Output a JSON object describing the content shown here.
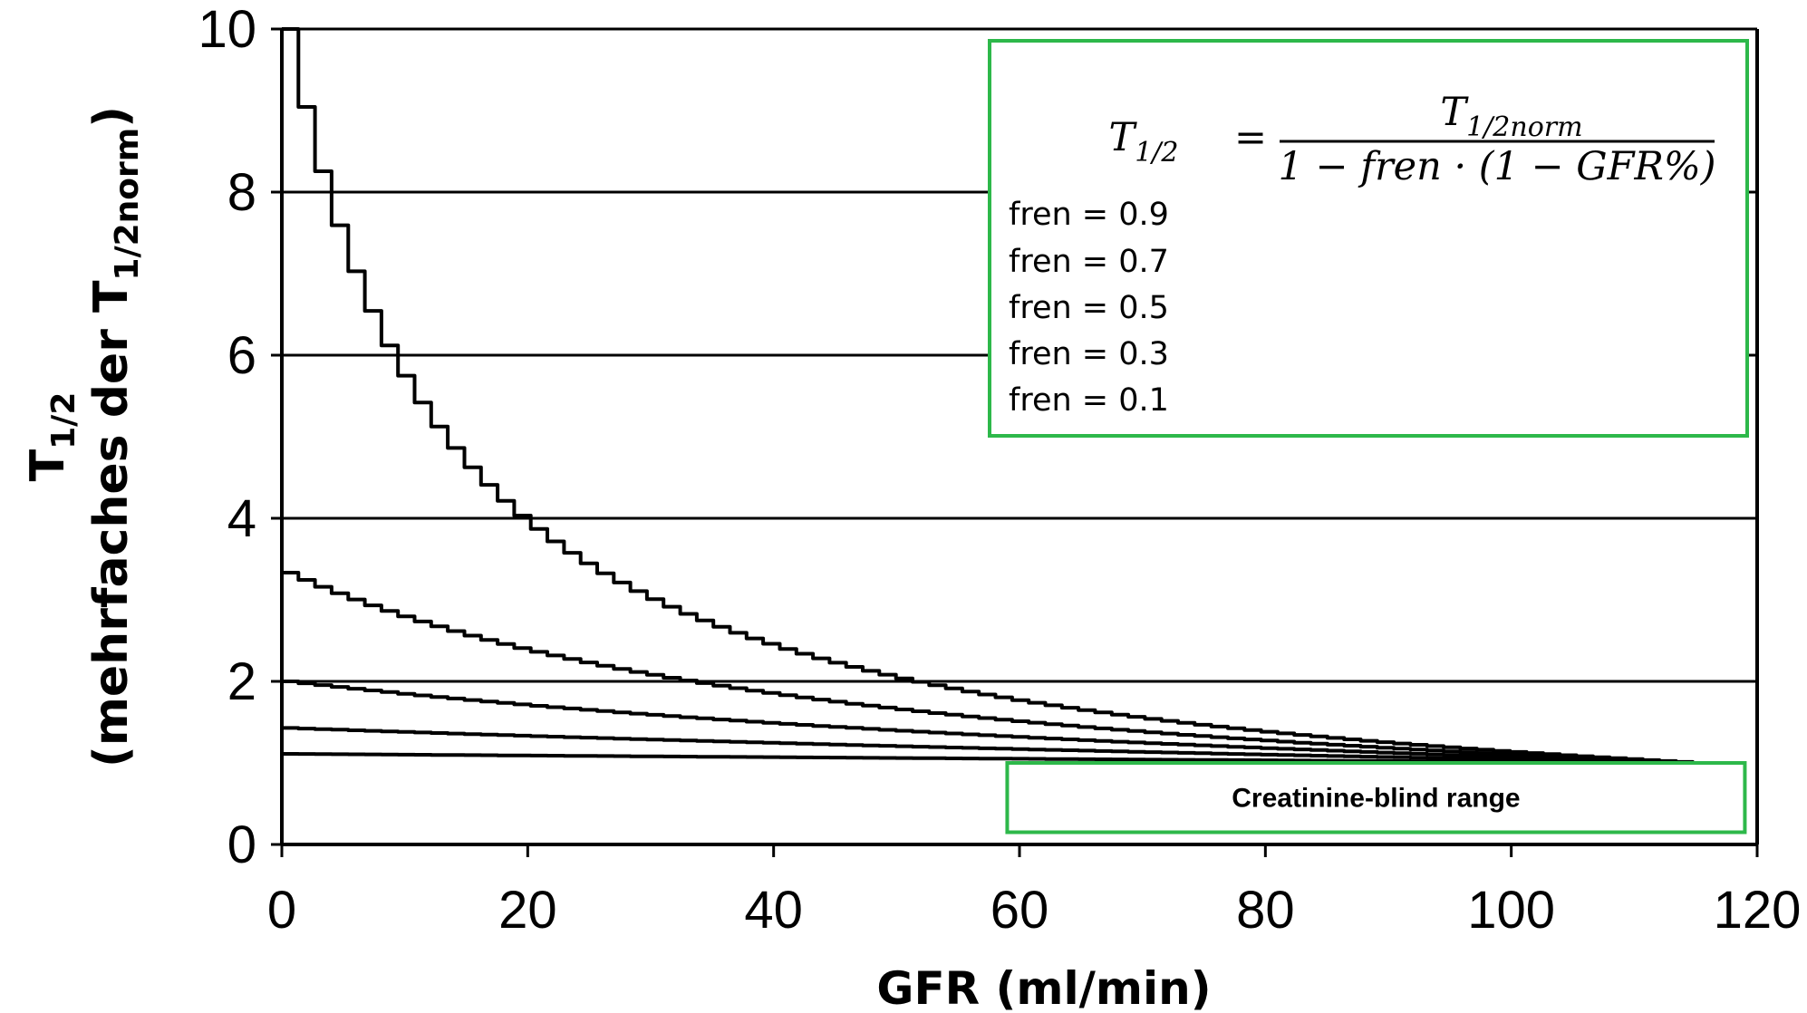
{
  "chart_data": {
    "type": "line",
    "xlabel": "GFR (ml/min)",
    "ylabel_main": "T",
    "ylabel_sub": "1/2",
    "ylabel_line2": "(mehrfaches der T",
    "ylabel_line2_sub": "1/2norm",
    "ylabel_line2_end": ")",
    "xlim": [
      0,
      120
    ],
    "ylim": [
      0,
      10
    ],
    "x_ticks": [
      "0",
      "20",
      "40",
      "60",
      "80",
      "100",
      "120"
    ],
    "y_ticks": [
      "0",
      "2",
      "4",
      "6",
      "8",
      "10"
    ],
    "gridlines_y": [
      2,
      4,
      6,
      8,
      10
    ],
    "x": [
      0,
      5,
      10,
      15,
      20,
      25,
      30,
      35,
      40,
      45,
      50,
      55,
      60,
      65,
      70,
      75,
      80,
      85,
      90,
      95,
      100,
      105,
      110,
      115
    ],
    "series": [
      {
        "fren": 0.9,
        "values": [
          10.0,
          7.5,
          5.7,
          4.7,
          4.0,
          3.4,
          3.0,
          2.7,
          2.5,
          2.3,
          2.1,
          1.95,
          1.8,
          1.7,
          1.6,
          1.5,
          1.4,
          1.35,
          1.3,
          1.22,
          1.15,
          1.1,
          1.05,
          1.0
        ]
      },
      {
        "fren": 0.7,
        "values": [
          3.33,
          3.0,
          2.75,
          2.55,
          2.4,
          2.25,
          2.1,
          2.0,
          1.9,
          1.8,
          1.7,
          1.62,
          1.55,
          1.48,
          1.42,
          1.36,
          1.3,
          1.25,
          1.2,
          1.15,
          1.12,
          1.08,
          1.04,
          1.0
        ]
      },
      {
        "fren": 0.5,
        "values": [
          2.0,
          1.9,
          1.8,
          1.73,
          1.67,
          1.6,
          1.55,
          1.5,
          1.45,
          1.4,
          1.36,
          1.32,
          1.28,
          1.24,
          1.2,
          1.17,
          1.14,
          1.11,
          1.09,
          1.07,
          1.05,
          1.03,
          1.02,
          1.0
        ]
      },
      {
        "fren": 0.3,
        "values": [
          1.43,
          1.39,
          1.35,
          1.32,
          1.29,
          1.26,
          1.24,
          1.22,
          1.2,
          1.18,
          1.16,
          1.14,
          1.12,
          1.11,
          1.09,
          1.08,
          1.07,
          1.06,
          1.05,
          1.04,
          1.03,
          1.02,
          1.01,
          1.0
        ]
      },
      {
        "fren": 0.1,
        "values": [
          1.11,
          1.1,
          1.09,
          1.09,
          1.08,
          1.08,
          1.07,
          1.07,
          1.06,
          1.06,
          1.05,
          1.05,
          1.04,
          1.04,
          1.03,
          1.03,
          1.03,
          1.02,
          1.02,
          1.02,
          1.01,
          1.01,
          1.0,
          1.0
        ]
      }
    ],
    "legend": {
      "formula": {
        "lhs": "T",
        "lhs_sub": "1/2",
        "equals": "=",
        "numerator": "T",
        "numerator_sub": "1/2norm",
        "denominator": "1 − fren · (1 − GFR%)"
      },
      "entries": [
        "fren = 0.9",
        "fren = 0.7",
        "fren = 0.5",
        "fren = 0.3",
        "fren = 0.1"
      ],
      "placement": "top-right"
    },
    "annotation": {
      "label": "Creatinine-blind range",
      "x_range": [
        59,
        119
      ],
      "y_range": [
        0.15,
        1.0
      ]
    },
    "colors": {
      "line": "#000000",
      "box_border": "#2db84a",
      "axis": "#000000"
    }
  }
}
